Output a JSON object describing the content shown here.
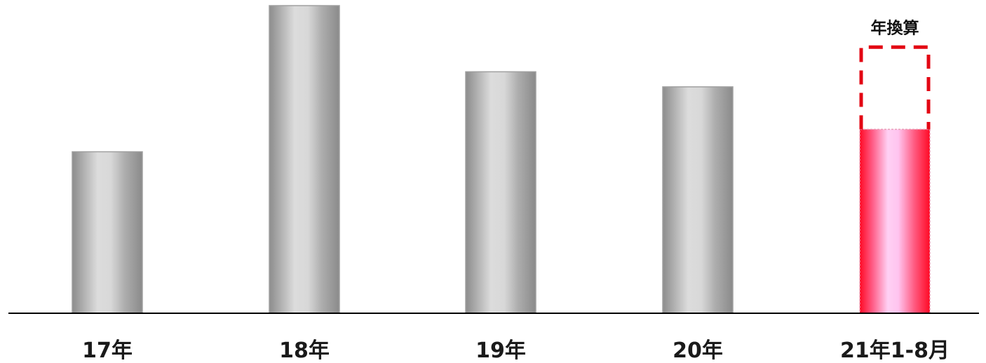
{
  "chart_data": {
    "type": "bar",
    "categories": [
      "17年",
      "18年",
      "19年",
      "20年",
      "21年1-8月"
    ],
    "values": [
      52.5,
      100,
      78.5,
      73.6,
      59.8
    ],
    "annualized": {
      "category": "21年1-8月",
      "label": "年換算",
      "value": 86.5
    },
    "title": "",
    "xlabel": "",
    "ylabel": "",
    "ylim": [
      0,
      100
    ],
    "y_axis_shown": false,
    "grid": false,
    "legend": "none",
    "colors": {
      "bar": "#9a9a9a",
      "highlight": "#ff1a2e",
      "annualized_outline": "#e30613",
      "axis": "#000000"
    }
  }
}
